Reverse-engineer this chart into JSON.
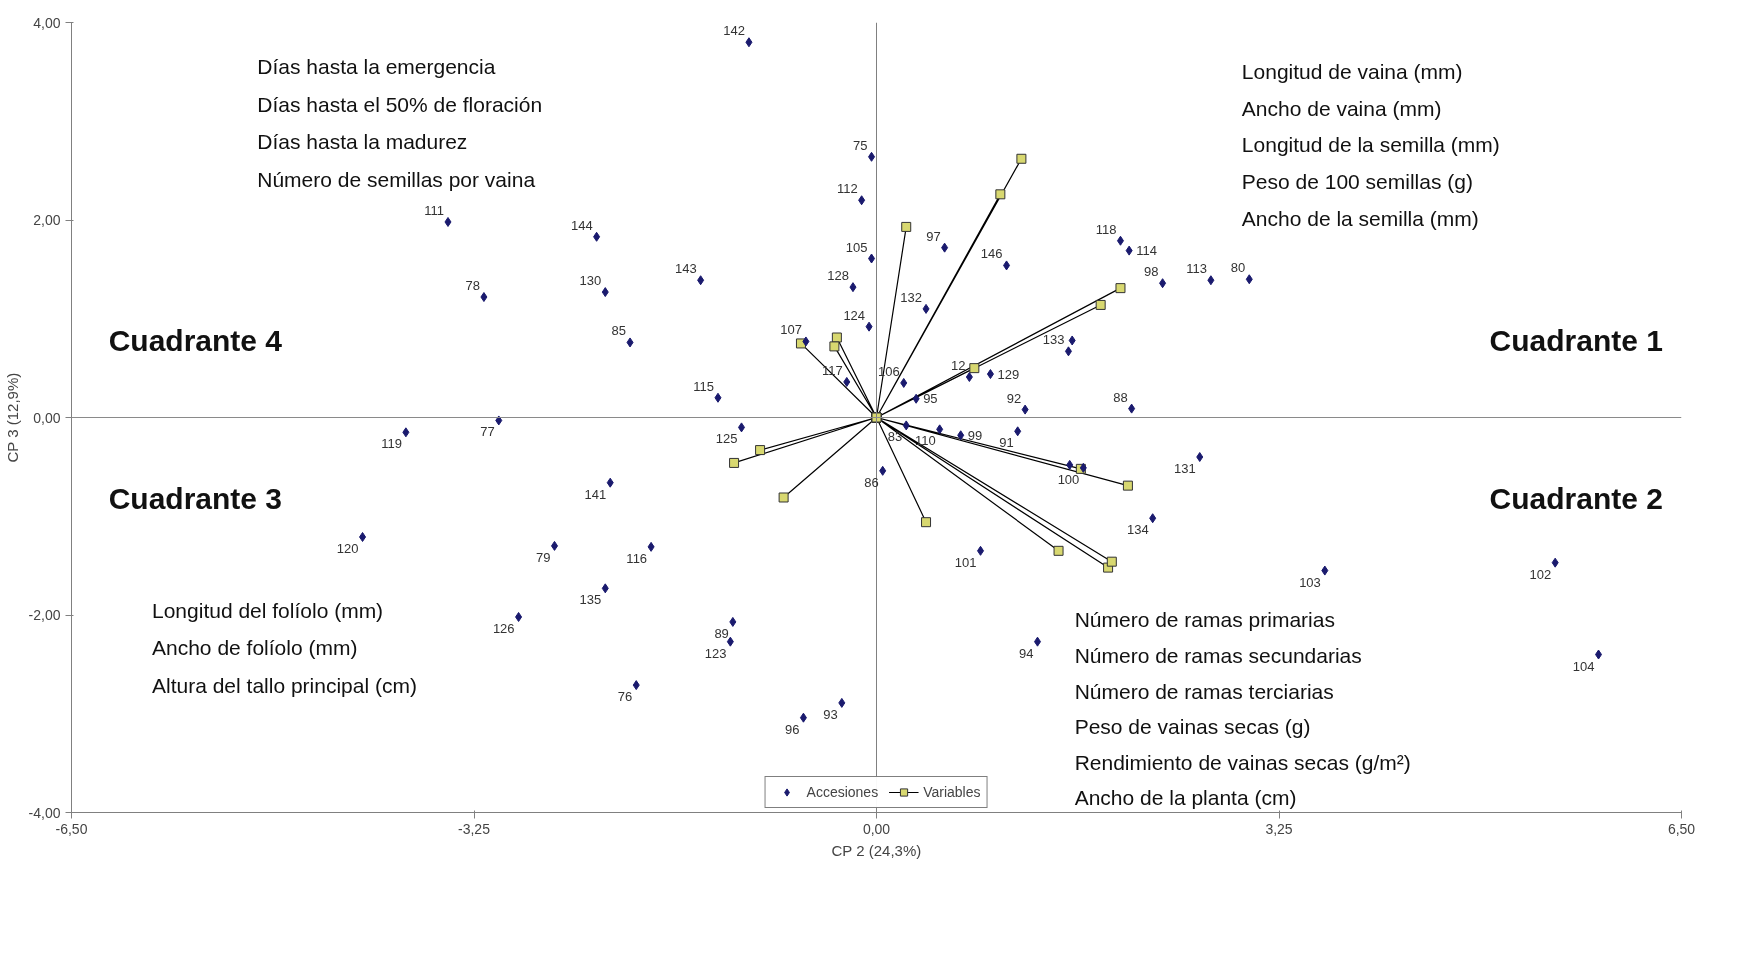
{
  "chart_data": {
    "type": "scatter",
    "xlabel": "CP 2 (24,3%)",
    "ylabel": "CP 3 (12,9%)",
    "xlim": [
      -6.5,
      6.5
    ],
    "ylim": [
      -4,
      4
    ],
    "xticks": [
      {
        "value": -6.5,
        "label": "-6,50"
      },
      {
        "value": -3.25,
        "label": "-3,25"
      },
      {
        "value": 0,
        "label": "0,00"
      },
      {
        "value": 3.25,
        "label": "3,25"
      },
      {
        "value": 6.5,
        "label": "6,50"
      }
    ],
    "yticks": [
      {
        "value": -4,
        "label": "-4,00"
      },
      {
        "value": -2,
        "label": "-2,00"
      },
      {
        "value": 0,
        "label": "0,00"
      },
      {
        "value": 2,
        "label": "2,00"
      },
      {
        "value": 4,
        "label": "4,00"
      }
    ],
    "grid": false,
    "legend": "bottom",
    "ref_lines": [
      {
        "axis": "x",
        "value": 0,
        "color": "#808080"
      },
      {
        "axis": "y",
        "value": 0,
        "color": "#8a8a8a"
      }
    ],
    "series": [
      {
        "name": "Accesiones",
        "marker": "diamond",
        "color": "#1a1a6e",
        "x": [
          -1.03,
          -0.04,
          -0.12,
          -3.46,
          -2.26,
          -0.04,
          0.55,
          1.05,
          1.97,
          2.04,
          2.31,
          2.7,
          3.01,
          -2.19,
          -1.42,
          -3.17,
          -0.19,
          0.4,
          -0.06,
          -1.99,
          -0.57,
          -0.24,
          1.55,
          1.58,
          0.75,
          0.92,
          0.22,
          0.32,
          1.2,
          2.06,
          -1.28,
          -3.05,
          -3.8,
          -1.09,
          -2.15,
          -4.15,
          -2.6,
          -1.82,
          -2.19,
          -2.89,
          -1.16,
          -1.18,
          -1.94,
          -0.28,
          -0.59,
          0.05,
          0.24,
          0.51,
          0.68,
          1.14,
          1.56,
          1.67,
          2.61,
          2.23,
          0.84,
          1.3,
          3.62,
          5.48,
          5.83
        ],
        "values": [
          3.8,
          2.64,
          2.2,
          1.98,
          1.83,
          1.61,
          1.72,
          1.54,
          1.79,
          1.69,
          1.36,
          1.39,
          1.4,
          1.27,
          1.39,
          1.22,
          1.32,
          1.1,
          0.92,
          0.76,
          0.77,
          0.36,
          0.67,
          0.78,
          0.41,
          0.44,
          0.35,
          0.19,
          0.08,
          0.09,
          0.2,
          -0.03,
          -0.15,
          -0.1,
          -0.66,
          -1.21,
          -1.3,
          -1.31,
          -1.73,
          -2.02,
          -2.07,
          -2.27,
          -2.71,
          -2.89,
          -3.04,
          -0.54,
          -0.08,
          -0.12,
          -0.18,
          -0.14,
          -0.48,
          -0.51,
          -0.4,
          -1.02,
          -1.35,
          -2.27,
          -1.55,
          -1.47,
          -2.4
        ]
      },
      {
        "name": "Variables",
        "type": "line",
        "marker": "square",
        "color": "#d8d870",
        "x": [
          0,
          1.17,
          null,
          0,
          1.0,
          null,
          0,
          0.24,
          null,
          0,
          1.97,
          null,
          0,
          1.81,
          null,
          0,
          0.79,
          null,
          0,
          -0.61,
          null,
          0,
          -0.32,
          null,
          0,
          -0.34,
          null,
          0,
          -0.94,
          null,
          0,
          -1.15,
          null,
          0,
          -0.75,
          null,
          0,
          0.4,
          null,
          0,
          1.47,
          null,
          0,
          1.87,
          null,
          0,
          1.9,
          null,
          0,
          2.03,
          null,
          0,
          1.65
        ],
        "values": [
          0,
          2.62,
          null,
          0,
          2.26,
          null,
          0,
          1.93,
          null,
          0,
          1.31,
          null,
          0,
          1.14,
          null,
          0,
          0.5,
          null,
          0,
          0.75,
          null,
          0,
          0.81,
          null,
          0,
          0.72,
          null,
          0,
          -0.33,
          null,
          0,
          -0.46,
          null,
          0,
          -0.81,
          null,
          0,
          -1.06,
          null,
          0,
          -1.35,
          null,
          0,
          -1.52,
          null,
          0,
          -1.46,
          null,
          0,
          -0.69,
          null,
          0,
          -0.52
        ]
      }
    ],
    "annotations": [
      {
        "text": "142",
        "x": -1.03,
        "y": 3.8
      },
      {
        "text": "75",
        "x": -0.04,
        "y": 2.64
      },
      {
        "text": "112",
        "x": -0.12,
        "y": 2.2
      },
      {
        "text": "111",
        "x": -3.46,
        "y": 1.98
      },
      {
        "text": "144",
        "x": -2.26,
        "y": 1.83
      },
      {
        "text": "105",
        "x": -0.04,
        "y": 1.61
      },
      {
        "text": "97",
        "x": 0.55,
        "y": 1.72
      },
      {
        "text": "146",
        "x": 1.05,
        "y": 1.54
      },
      {
        "text": "118",
        "x": 1.97,
        "y": 1.79
      },
      {
        "text": "114",
        "x": 2.04,
        "y": 1.69
      },
      {
        "text": "98",
        "x": 2.31,
        "y": 1.36
      },
      {
        "text": "113",
        "x": 2.7,
        "y": 1.39
      },
      {
        "text": "80",
        "x": 3.01,
        "y": 1.4
      },
      {
        "text": "130",
        "x": -2.19,
        "y": 1.27
      },
      {
        "text": "143",
        "x": -1.42,
        "y": 1.39
      },
      {
        "text": "78",
        "x": -3.17,
        "y": 1.22
      },
      {
        "text": "128",
        "x": -0.19,
        "y": 1.32
      },
      {
        "text": "132",
        "x": 0.4,
        "y": 1.1
      },
      {
        "text": "124",
        "x": -0.06,
        "y": 0.92
      },
      {
        "text": "85",
        "x": -1.99,
        "y": 0.76
      },
      {
        "text": "107",
        "x": -0.57,
        "y": 0.77
      },
      {
        "text": "117",
        "x": -0.24,
        "y": 0.36
      },
      {
        "text": "133",
        "x": 1.55,
        "y": 0.67
      },
      {
        "text": "12",
        "x": 0.75,
        "y": 0.41
      },
      {
        "text": "129",
        "x": 0.92,
        "y": 0.44
      },
      {
        "text": "106",
        "x": 0.22,
        "y": 0.35
      },
      {
        "text": "95",
        "x": 0.32,
        "y": 0.19
      },
      {
        "text": "92",
        "x": 1.2,
        "y": 0.08
      },
      {
        "text": "88",
        "x": 2.06,
        "y": 0.09
      },
      {
        "text": "115",
        "x": -1.28,
        "y": 0.2
      },
      {
        "text": "77",
        "x": -3.05,
        "y": -0.03
      },
      {
        "text": "119",
        "x": -3.8,
        "y": -0.15
      },
      {
        "text": "125",
        "x": -1.09,
        "y": -0.1
      },
      {
        "text": "141",
        "x": -2.15,
        "y": -0.66
      },
      {
        "text": "120",
        "x": -4.15,
        "y": -1.21
      },
      {
        "text": "79",
        "x": -2.6,
        "y": -1.3
      },
      {
        "text": "116",
        "x": -1.82,
        "y": -1.31
      },
      {
        "text": "135",
        "x": -2.19,
        "y": -1.73
      },
      {
        "text": "126",
        "x": -2.89,
        "y": -2.02
      },
      {
        "text": "89",
        "x": -1.16,
        "y": -2.07
      },
      {
        "text": "123",
        "x": -1.18,
        "y": -2.27
      },
      {
        "text": "76",
        "x": -1.94,
        "y": -2.71
      },
      {
        "text": "93",
        "x": -0.28,
        "y": -2.89
      },
      {
        "text": "96",
        "x": -0.59,
        "y": -3.04
      },
      {
        "text": "86",
        "x": 0.05,
        "y": -0.54
      },
      {
        "text": "83",
        "x": 0.24,
        "y": -0.08
      },
      {
        "text": "110",
        "x": 0.51,
        "y": -0.12
      },
      {
        "text": "99",
        "x": 0.68,
        "y": -0.18
      },
      {
        "text": "91",
        "x": 1.14,
        "y": -0.14
      },
      {
        "text": "100",
        "x": 1.67,
        "y": -0.51
      },
      {
        "text": "131",
        "x": 2.61,
        "y": -0.4
      },
      {
        "text": "134",
        "x": 2.23,
        "y": -1.02
      },
      {
        "text": "101",
        "x": 0.84,
        "y": -1.35
      },
      {
        "text": "94",
        "x": 1.3,
        "y": -2.27
      },
      {
        "text": "103",
        "x": 3.62,
        "y": -1.55
      },
      {
        "text": "102",
        "x": 5.48,
        "y": -1.47
      },
      {
        "text": "104",
        "x": 5.83,
        "y": -2.4
      },
      "Días hasta la emergencia",
      "Días hasta el 50% de floración",
      "Días hasta la madurez",
      "Número de semillas por vaina",
      "Longitud de vaina (mm)",
      "Ancho de vaina (mm)",
      "Longitud de la semilla (mm)",
      "Peso de 100 semillas (g)",
      "Ancho de la semilla (mm)",
      "Cuadrante 4",
      "Cuadrante 1",
      "Cuadrante 3",
      "Cuadrante 2",
      "Longitud del folíolo (mm)",
      "Ancho de folíolo (mm)",
      "Altura del tallo principal (cm)",
      "Número de ramas primarias",
      "Número de ramas secundarias",
      "Número de ramas terciarias",
      "Peso de vainas secas (g)",
      "Rendimiento de vainas secas (g/m²)",
      "Ancho de la planta (cm)"
    ]
  }
}
